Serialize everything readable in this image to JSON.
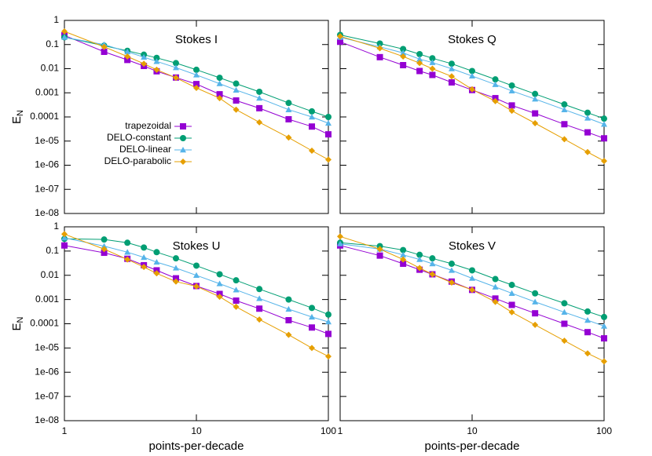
{
  "chart_data": [
    {
      "type": "line",
      "title": "Stokes I",
      "ylabel": "E",
      "ylabel_sub": "N",
      "log_x": true,
      "log_y": true,
      "legend": "center left",
      "x": [
        1,
        2,
        3,
        4,
        5,
        7,
        10,
        15,
        20,
        30,
        50,
        75,
        100
      ],
      "xlim": [
        1,
        100
      ],
      "xticks": [
        1,
        10,
        100
      ],
      "ylim": [
        1e-08,
        1
      ],
      "yticks": [
        1,
        0.1,
        0.01,
        0.001,
        0.0001,
        {
          "value": 1e-05,
          "label": "1e-05"
        },
        {
          "value": 1e-06,
          "label": "1e-06"
        },
        {
          "value": 1e-07,
          "label": "1e-07"
        },
        {
          "value": 1e-08,
          "label": "1e-08"
        }
      ],
      "series": [
        {
          "name": "trapezoidal",
          "color": "#9400d3",
          "marker": "square",
          "values": [
            0.24,
            0.05,
            0.023,
            0.013,
            0.0078,
            0.0043,
            0.0023,
            0.00087,
            0.00048,
            0.00023,
            8e-05,
            4e-05,
            1.9e-05
          ]
        },
        {
          "name": "DELO-constant",
          "color": "#009e73",
          "marker": "circle",
          "values": [
            0.2,
            0.09,
            0.055,
            0.038,
            0.028,
            0.017,
            0.009,
            0.0042,
            0.0024,
            0.0011,
            0.00038,
            0.00017,
            0.0001
          ]
        },
        {
          "name": "DELO-linear",
          "color": "#56b4e9",
          "marker": "triangle",
          "values": [
            0.2,
            0.1,
            0.05,
            0.03,
            0.02,
            0.011,
            0.0055,
            0.0024,
            0.0013,
            0.0006,
            0.0002,
            0.0001,
            5.5e-05
          ]
        },
        {
          "name": "DELO-parabolic",
          "color": "#e69f00",
          "marker": "diamond",
          "values": [
            0.35,
            0.08,
            0.032,
            0.016,
            0.009,
            0.0042,
            0.0016,
            0.0006,
            0.0002,
            6e-05,
            1.4e-05,
            4e-06,
            1.7e-06
          ]
        }
      ]
    },
    {
      "type": "line",
      "title": "Stokes Q",
      "log_x": true,
      "log_y": true,
      "x": [
        1,
        2,
        3,
        4,
        5,
        7,
        10,
        15,
        20,
        30,
        50,
        75,
        100
      ],
      "xlim": [
        1,
        100
      ],
      "xticks": [
        1,
        10,
        100
      ],
      "ylim": [
        1e-08,
        1
      ],
      "yticks": [
        1,
        0.1,
        0.01,
        0.001,
        0.0001,
        1e-05,
        1e-06,
        1e-07,
        1e-08
      ],
      "series": [
        {
          "name": "trapezoidal",
          "color": "#9400d3",
          "marker": "square",
          "values": [
            0.13,
            0.03,
            0.014,
            0.008,
            0.0055,
            0.0027,
            0.0013,
            0.0006,
            0.0003,
            0.00014,
            5e-05,
            2.3e-05,
            1.3e-05
          ]
        },
        {
          "name": "DELO-constant",
          "color": "#009e73",
          "marker": "circle",
          "values": [
            0.25,
            0.11,
            0.065,
            0.04,
            0.027,
            0.016,
            0.008,
            0.0036,
            0.002,
            0.0009,
            0.00033,
            0.00015,
            8.5e-05
          ]
        },
        {
          "name": "DELO-linear",
          "color": "#56b4e9",
          "marker": "triangle",
          "values": [
            0.2,
            0.08,
            0.045,
            0.025,
            0.018,
            0.01,
            0.005,
            0.0022,
            0.0012,
            0.00055,
            0.0002,
            9e-05,
            5e-05
          ]
        },
        {
          "name": "DELO-parabolic",
          "color": "#e69f00",
          "marker": "diamond",
          "values": [
            0.22,
            0.07,
            0.032,
            0.017,
            0.01,
            0.0048,
            0.0014,
            0.00045,
            0.00018,
            5.5e-05,
            1.2e-05,
            3.5e-06,
            1.5e-06
          ]
        }
      ]
    },
    {
      "type": "line",
      "title": "Stokes U",
      "ylabel": "E",
      "ylabel_sub": "N",
      "xlabel": "points-per-decade",
      "log_x": true,
      "log_y": true,
      "x": [
        1,
        2,
        3,
        4,
        5,
        7,
        10,
        15,
        20,
        30,
        50,
        75,
        100
      ],
      "xlim": [
        1,
        100
      ],
      "xticks": [
        1,
        10,
        100
      ],
      "ylim": [
        1e-08,
        1
      ],
      "yticks": [
        1,
        0.1,
        0.01,
        0.001,
        0.0001,
        {
          "value": 1e-05,
          "label": "1e-05"
        },
        {
          "value": 1e-06,
          "label": "1e-06"
        },
        {
          "value": 1e-07,
          "label": "1e-07"
        },
        {
          "value": 1e-08,
          "label": "1e-08"
        }
      ],
      "series": [
        {
          "name": "trapezoidal",
          "color": "#9400d3",
          "marker": "square",
          "values": [
            0.17,
            0.085,
            0.048,
            0.026,
            0.016,
            0.0075,
            0.0036,
            0.0017,
            0.0009,
            0.00042,
            0.00014,
            7e-05,
            3.8e-05
          ]
        },
        {
          "name": "DELO-constant",
          "color": "#009e73",
          "marker": "circle",
          "values": [
            0.32,
            0.3,
            0.22,
            0.14,
            0.09,
            0.05,
            0.025,
            0.011,
            0.0062,
            0.0027,
            0.001,
            0.00045,
            0.00024
          ]
        },
        {
          "name": "DELO-linear",
          "color": "#56b4e9",
          "marker": "triangle",
          "values": [
            0.35,
            0.16,
            0.09,
            0.055,
            0.035,
            0.02,
            0.01,
            0.0045,
            0.0025,
            0.0011,
            0.0004,
            0.00019,
            0.00012
          ]
        },
        {
          "name": "DELO-parabolic",
          "color": "#e69f00",
          "marker": "diamond",
          "values": [
            0.5,
            0.12,
            0.045,
            0.022,
            0.012,
            0.0055,
            0.0035,
            0.0013,
            0.0005,
            0.00015,
            3.5e-05,
            1e-05,
            4.5e-06
          ]
        }
      ]
    },
    {
      "type": "line",
      "title": "Stokes V",
      "xlabel": "points-per-decade",
      "log_x": true,
      "log_y": true,
      "x": [
        1,
        2,
        3,
        4,
        5,
        7,
        10,
        15,
        20,
        30,
        50,
        75,
        100
      ],
      "xlim": [
        1,
        100
      ],
      "xticks": [
        1,
        10,
        100
      ],
      "ylim": [
        1e-08,
        1
      ],
      "yticks": [
        1,
        0.1,
        0.01,
        0.001,
        0.0001,
        1e-05,
        1e-06,
        1e-07,
        1e-08
      ],
      "series": [
        {
          "name": "trapezoidal",
          "color": "#9400d3",
          "marker": "square",
          "values": [
            0.17,
            0.065,
            0.03,
            0.017,
            0.011,
            0.0055,
            0.0025,
            0.0011,
            0.0006,
            0.00027,
            0.0001,
            4.5e-05,
            2.5e-05
          ]
        },
        {
          "name": "DELO-constant",
          "color": "#009e73",
          "marker": "circle",
          "values": [
            0.22,
            0.16,
            0.11,
            0.07,
            0.05,
            0.03,
            0.016,
            0.007,
            0.004,
            0.0018,
            0.0007,
            0.00032,
            0.00019
          ]
        },
        {
          "name": "DELO-linear",
          "color": "#56b4e9",
          "marker": "triangle",
          "values": [
            0.2,
            0.12,
            0.07,
            0.045,
            0.03,
            0.016,
            0.0075,
            0.0033,
            0.0018,
            0.0008,
            0.0003,
            0.00014,
            8e-05
          ]
        },
        {
          "name": "DELO-parabolic",
          "color": "#e69f00",
          "marker": "diamond",
          "values": [
            0.4,
            0.12,
            0.045,
            0.02,
            0.011,
            0.005,
            0.0025,
            0.0008,
            0.0003,
            9e-05,
            2e-05,
            6e-06,
            2.8e-06
          ]
        }
      ]
    }
  ]
}
